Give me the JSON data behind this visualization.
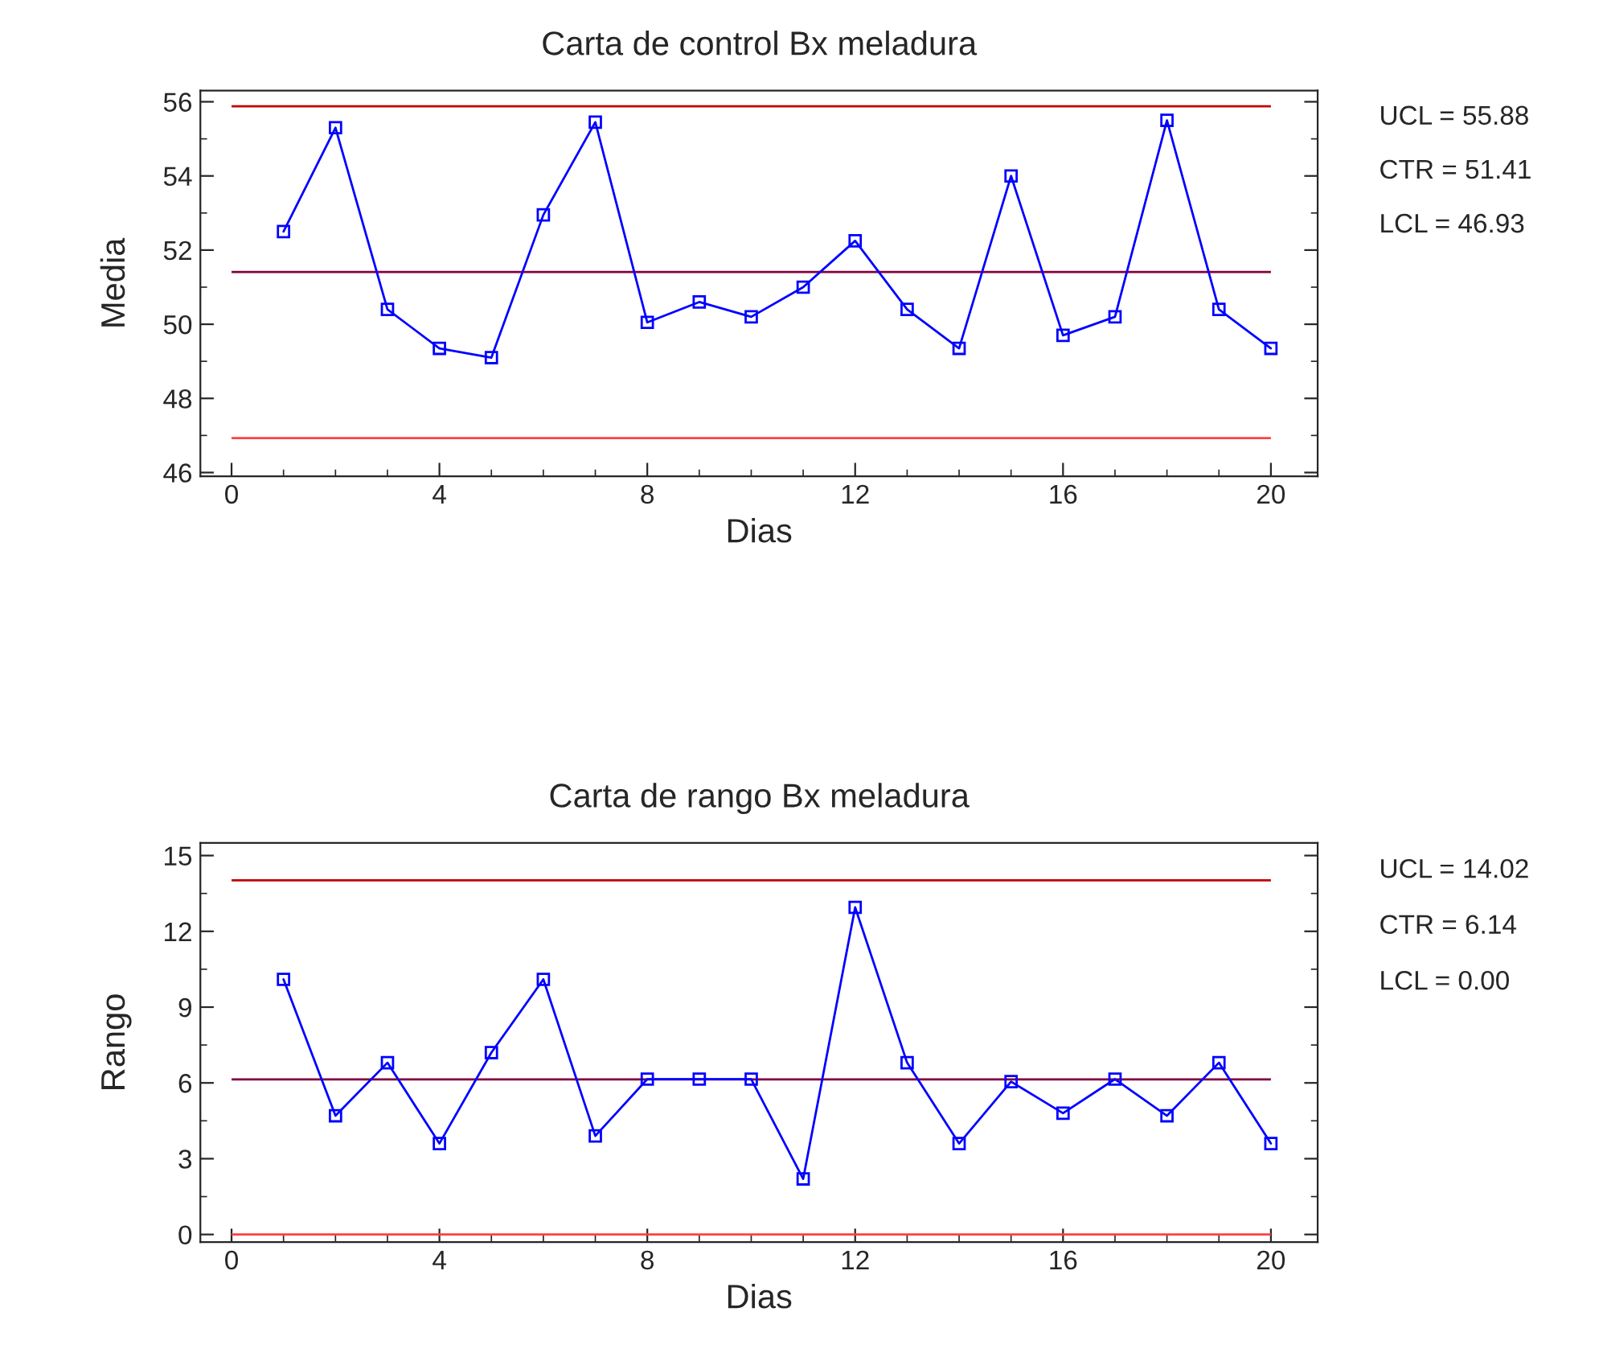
{
  "chart_data": [
    {
      "type": "line",
      "title": "Carta de control Bx meladura",
      "xlabel": "Dias",
      "ylabel": "Media",
      "marker": "square",
      "line_style": "solid",
      "grid": false,
      "legend": false,
      "x": [
        1,
        2,
        3,
        4,
        5,
        6,
        7,
        8,
        9,
        10,
        11,
        12,
        13,
        14,
        15,
        16,
        17,
        18,
        19,
        20
      ],
      "series": [
        {
          "color": "#0000ff",
          "values": [
            52.5,
            55.3,
            50.4,
            49.35,
            49.1,
            52.95,
            55.45,
            50.05,
            50.6,
            50.2,
            51.0,
            52.25,
            50.4,
            49.35,
            54.0,
            49.7,
            50.2,
            55.5,
            50.4,
            49.35
          ]
        }
      ],
      "xlim": [
        -0.6,
        20.9
      ],
      "xticks": [
        0,
        4,
        8,
        12,
        16,
        20
      ],
      "ylim": [
        45.9,
        56.3
      ],
      "yticks": [
        46,
        48,
        50,
        52,
        54,
        56
      ],
      "ref_lines": [
        {
          "axis": "y",
          "value": 55.88,
          "color": "#c00000"
        },
        {
          "axis": "y",
          "value": 51.41,
          "color": "#800040"
        },
        {
          "axis": "y",
          "value": 46.93,
          "color": "#ff4040"
        }
      ],
      "annotations": [
        "UCL = 55.88",
        "CTR = 51.41",
        "LCL = 46.93"
      ]
    },
    {
      "type": "line",
      "title": "Carta de rango Bx meladura",
      "xlabel": "Dias",
      "ylabel": "Rango",
      "marker": "square",
      "line_style": "solid",
      "grid": false,
      "legend": false,
      "x": [
        1,
        2,
        3,
        4,
        5,
        6,
        7,
        8,
        9,
        10,
        11,
        12,
        13,
        14,
        15,
        16,
        17,
        18,
        19,
        20
      ],
      "series": [
        {
          "color": "#0000ff",
          "values": [
            10.1,
            4.7,
            6.8,
            3.6,
            7.2,
            10.1,
            3.9,
            6.15,
            6.15,
            6.15,
            2.2,
            12.95,
            6.8,
            3.6,
            6.05,
            4.8,
            6.15,
            4.7,
            6.8,
            3.6
          ]
        }
      ],
      "xlim": [
        -0.6,
        20.9
      ],
      "xticks": [
        0,
        4,
        8,
        12,
        16,
        20
      ],
      "ylim": [
        -0.3,
        15.5
      ],
      "yticks": [
        0,
        3,
        6,
        9,
        12,
        15
      ],
      "ref_lines": [
        {
          "axis": "y",
          "value": 14.02,
          "color": "#c00000"
        },
        {
          "axis": "y",
          "value": 6.14,
          "color": "#800040"
        },
        {
          "axis": "y",
          "value": 0.0,
          "color": "#ff4040"
        }
      ],
      "annotations": [
        "UCL = 14.02",
        "CTR = 6.14",
        "LCL = 0.00"
      ]
    }
  ]
}
